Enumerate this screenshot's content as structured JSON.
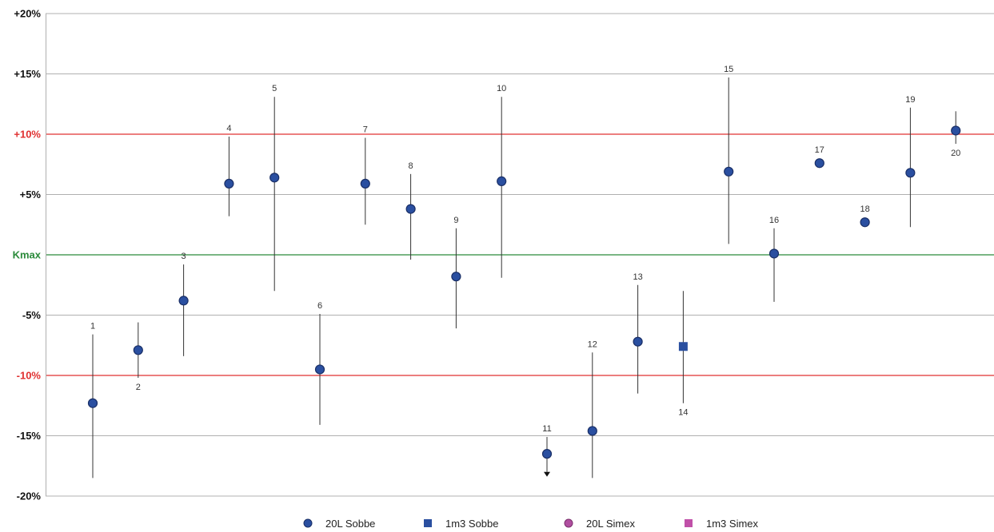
{
  "chart_data": {
    "type": "scatter",
    "title": "",
    "xlabel": "",
    "ylabel": "",
    "ylim": [
      -20,
      20
    ],
    "grid": true,
    "legend_position": "bottom",
    "y_ticks": [
      {
        "value": 20,
        "label": "+20%",
        "style": "normal"
      },
      {
        "value": 15,
        "label": "+15%",
        "style": "normal"
      },
      {
        "value": 10,
        "label": "+10%",
        "style": "red"
      },
      {
        "value": 5,
        "label": "+5%",
        "style": "normal"
      },
      {
        "value": 0,
        "label": "Kmax",
        "style": "green"
      },
      {
        "value": -5,
        "label": "-5%",
        "style": "normal"
      },
      {
        "value": -10,
        "label": "-10%",
        "style": "red"
      },
      {
        "value": -15,
        "label": "-15%",
        "style": "normal"
      },
      {
        "value": -20,
        "label": "-20%",
        "style": "normal"
      }
    ],
    "colors": {
      "marker": "#2a4fa0",
      "marker_stroke": "#1a2f66",
      "limit_line": "#e03030",
      "kmax_line": "#2a8a3a",
      "grid": "#b0b0b0",
      "whisker": "#333333",
      "simex_20l": "#b04fa0",
      "simex_1m3": "#c050a8"
    },
    "series": [
      {
        "name": "20L Sobbe",
        "marker": "circle",
        "points": [
          {
            "label": "1",
            "x": 1,
            "y": -12.3,
            "low": -18.5,
            "high": -6.6,
            "label_pos": "above"
          },
          {
            "label": "2",
            "x": 2,
            "y": -7.9,
            "low": -10.2,
            "high": -5.6,
            "label_pos": "below"
          },
          {
            "label": "3",
            "x": 3,
            "y": -3.8,
            "low": -8.4,
            "high": -0.8,
            "label_pos": "above"
          },
          {
            "label": "4",
            "x": 4,
            "y": 5.9,
            "low": 3.2,
            "high": 9.8,
            "label_pos": "above"
          },
          {
            "label": "5",
            "x": 5,
            "y": 6.4,
            "low": -3.0,
            "high": 13.1,
            "label_pos": "above"
          },
          {
            "label": "6",
            "x": 6,
            "y": -9.5,
            "low": -14.1,
            "high": -4.9,
            "label_pos": "above"
          },
          {
            "label": "7",
            "x": 7,
            "y": 5.9,
            "low": 2.5,
            "high": 9.7,
            "label_pos": "above"
          },
          {
            "label": "8",
            "x": 8,
            "y": 3.8,
            "low": -0.4,
            "high": 6.7,
            "label_pos": "above"
          },
          {
            "label": "9",
            "x": 9,
            "y": -1.8,
            "low": -6.1,
            "high": 2.2,
            "label_pos": "above"
          },
          {
            "label": "10",
            "x": 10,
            "y": 6.1,
            "low": -1.9,
            "high": 13.1,
            "label_pos": "above"
          },
          {
            "label": "11",
            "x": 11,
            "y": -16.5,
            "low": -18.0,
            "high": -15.1,
            "label_pos": "above",
            "arrow_down": true
          },
          {
            "label": "12",
            "x": 12,
            "y": -14.6,
            "low": -18.5,
            "high": -8.1,
            "label_pos": "above"
          },
          {
            "label": "13",
            "x": 13,
            "y": -7.2,
            "low": -11.5,
            "high": -2.5,
            "label_pos": "above"
          },
          {
            "label": "15",
            "x": 15,
            "y": 6.9,
            "low": 0.9,
            "high": 14.7,
            "label_pos": "above"
          },
          {
            "label": "16",
            "x": 16,
            "y": 0.1,
            "low": -3.9,
            "high": 2.2,
            "label_pos": "above"
          },
          {
            "label": "17",
            "x": 17,
            "y": 7.6,
            "low": 7.6,
            "high": 7.6,
            "label_pos": "above"
          },
          {
            "label": "18",
            "x": 18,
            "y": 2.7,
            "low": 2.7,
            "high": 2.7,
            "label_pos": "above"
          },
          {
            "label": "19",
            "x": 19,
            "y": 6.8,
            "low": 2.3,
            "high": 12.2,
            "label_pos": "above"
          },
          {
            "label": "20",
            "x": 20,
            "y": 10.3,
            "low": 9.2,
            "high": 11.9,
            "label_pos": "below"
          }
        ]
      },
      {
        "name": "1m3 Sobbe",
        "marker": "square",
        "points": [
          {
            "label": "14",
            "x": 14,
            "y": -7.6,
            "low": -12.3,
            "high": -3.0,
            "label_pos": "below"
          }
        ]
      },
      {
        "name": "20L Simex",
        "marker": "circle",
        "points": []
      },
      {
        "name": "1m3 Simex",
        "marker": "square",
        "points": []
      }
    ]
  }
}
